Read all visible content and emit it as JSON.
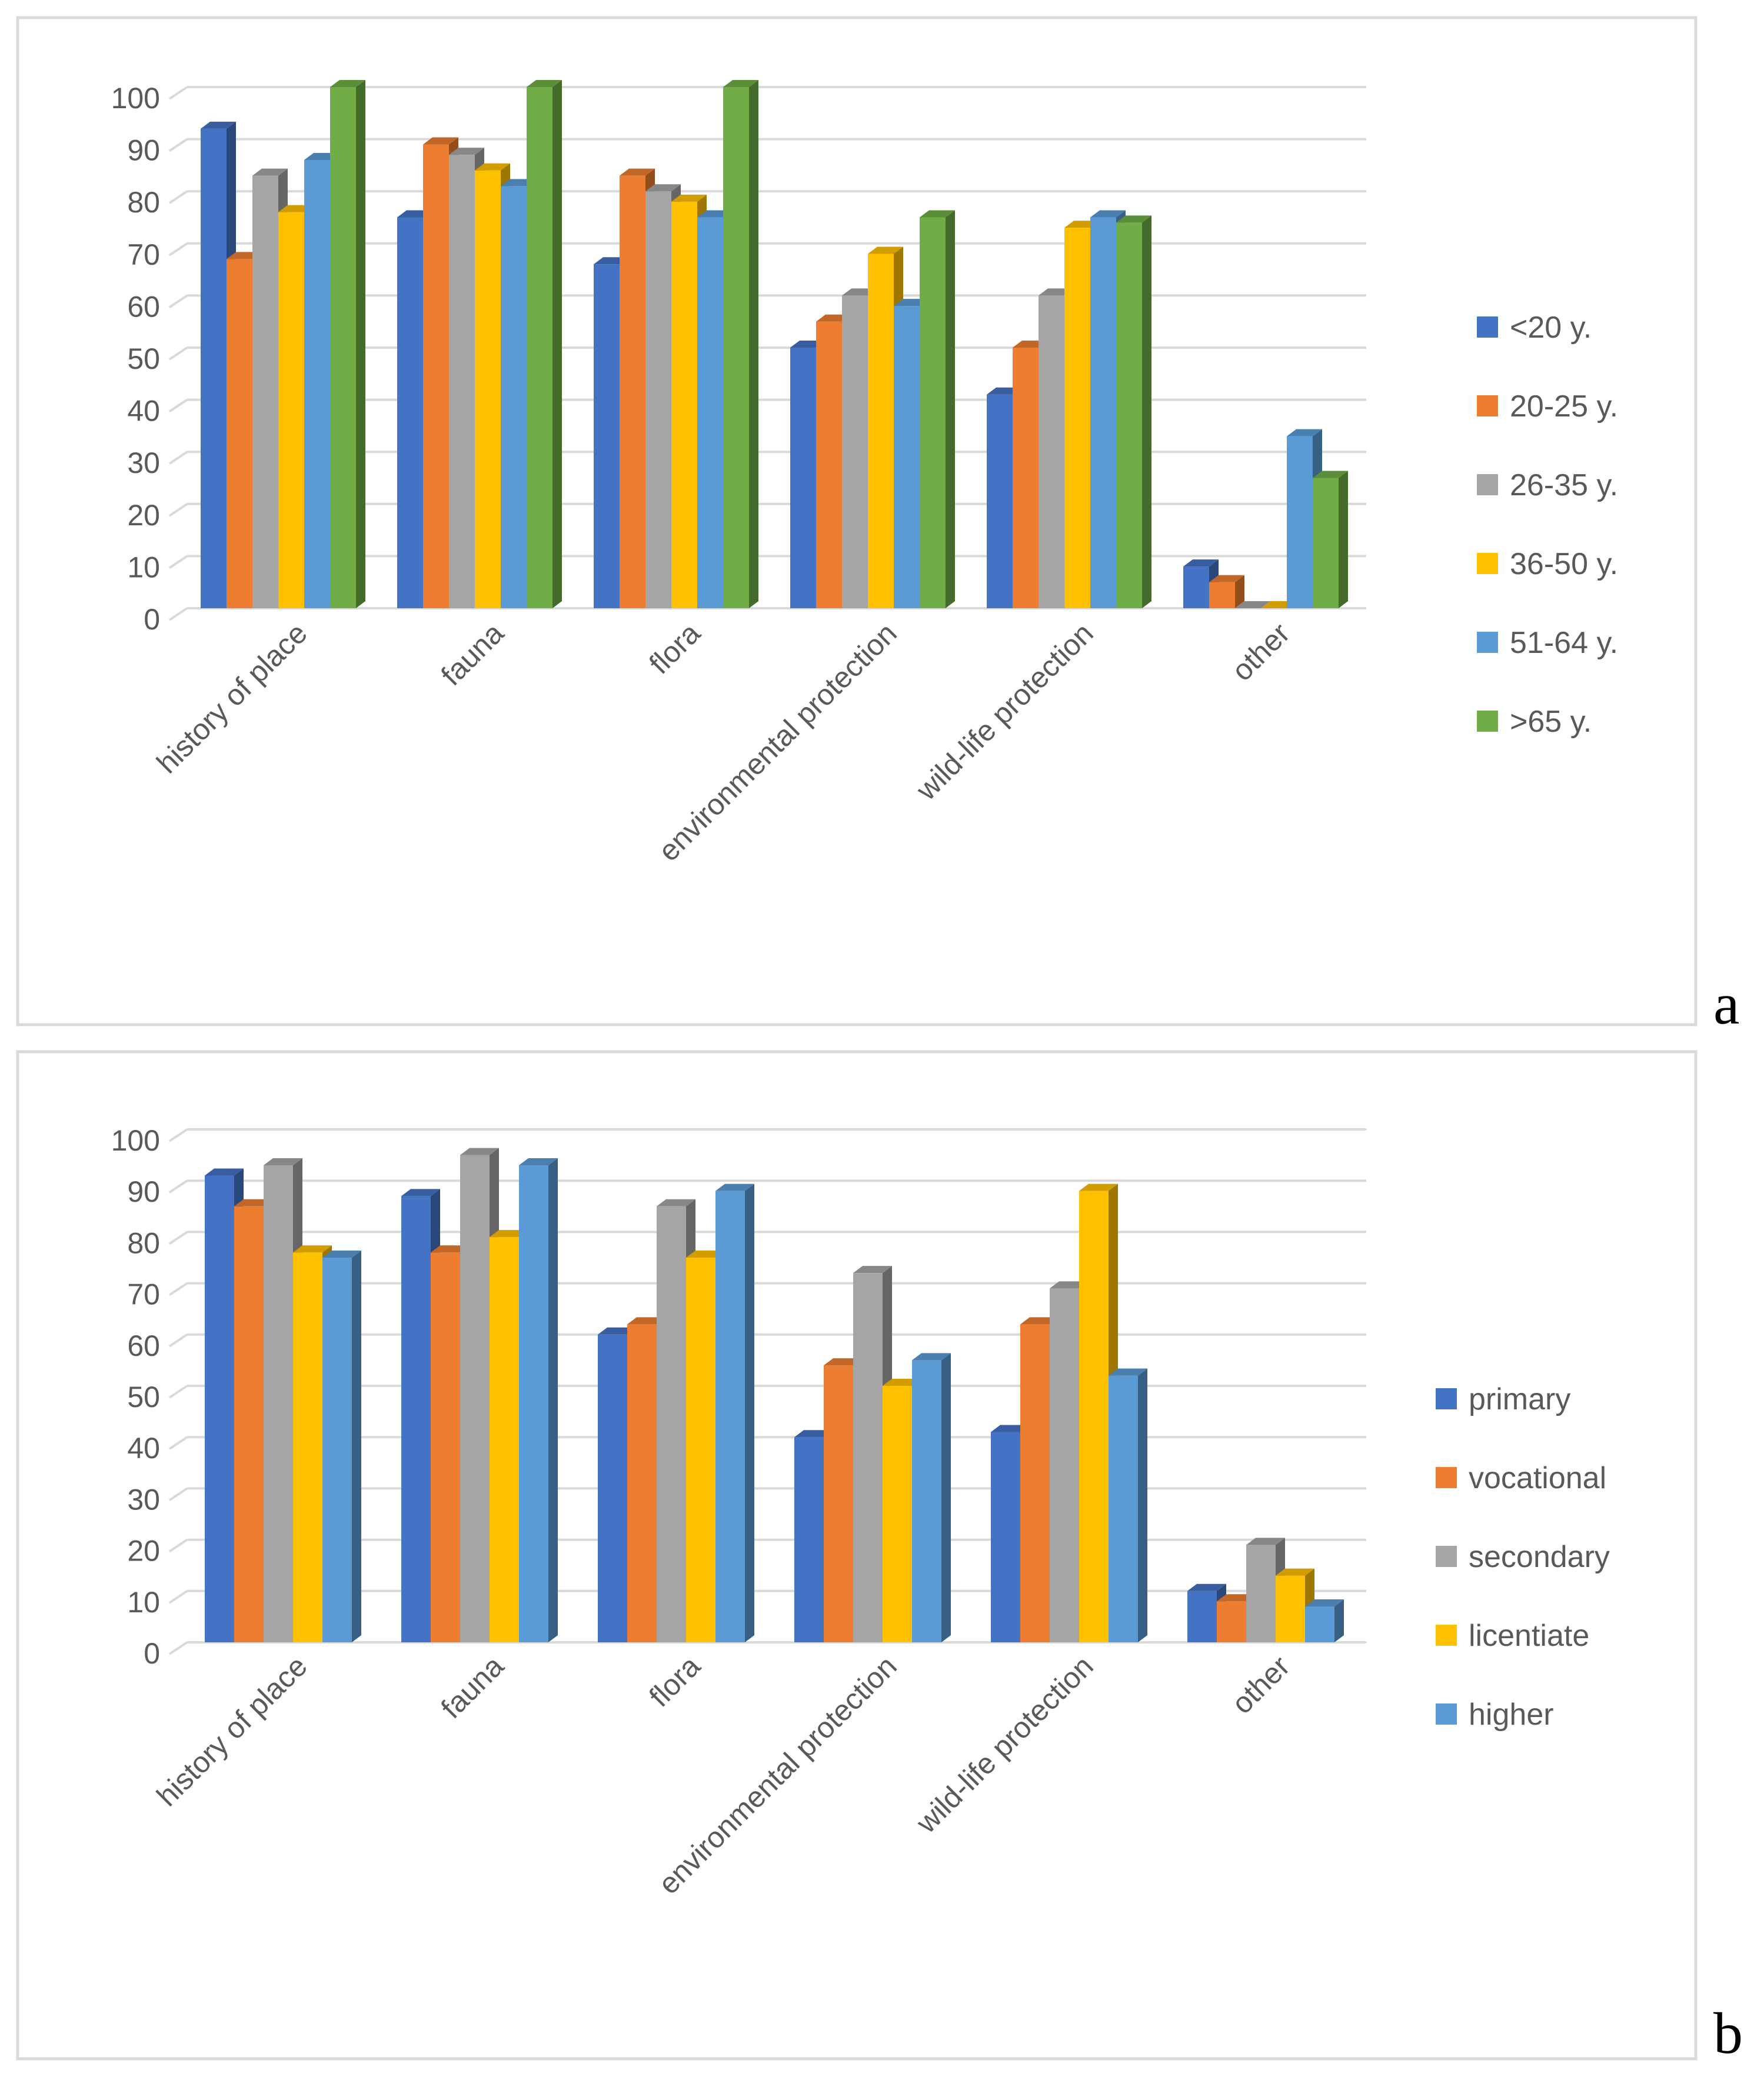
{
  "chart_data": [
    {
      "panel_label": "a",
      "type": "bar",
      "style": "3d-clustered-column",
      "categories": [
        "history of place",
        "fauna",
        "flora",
        "environmental protection",
        "wild-life protection",
        "other"
      ],
      "series": [
        {
          "name": "<20 y.",
          "color": "#4472C4",
          "values": [
            92,
            75,
            66,
            50,
            41,
            8
          ]
        },
        {
          "name": "20-25 y.",
          "color": "#ED7D31",
          "values": [
            67,
            89,
            83,
            55,
            50,
            5
          ]
        },
        {
          "name": "26-35 y.",
          "color": "#A5A5A5",
          "values": [
            83,
            87,
            80,
            60,
            60,
            0
          ]
        },
        {
          "name": "36-50 y.",
          "color": "#FFC000",
          "values": [
            76,
            84,
            78,
            68,
            73,
            0
          ]
        },
        {
          "name": "51-64 y.",
          "color": "#5B9BD5",
          "values": [
            86,
            81,
            75,
            58,
            75,
            33
          ]
        },
        {
          "name": ">65 y.",
          "color": "#70AD47",
          "values": [
            100,
            100,
            100,
            75,
            74,
            25
          ]
        }
      ],
      "ylim": [
        0,
        100
      ],
      "yticks": [
        "0",
        "10",
        "20",
        "30",
        "40",
        "50",
        "60",
        "70",
        "80",
        "90",
        "100"
      ],
      "grid": true,
      "legend": "right",
      "title": "",
      "xlabel": "",
      "ylabel": ""
    },
    {
      "panel_label": "b",
      "type": "bar",
      "style": "3d-clustered-column",
      "categories": [
        "history of place",
        "fauna",
        "flora",
        "environmental protection",
        "wild-life protection",
        "other"
      ],
      "series": [
        {
          "name": "primary",
          "color": "#4472C4",
          "values": [
            91,
            87,
            60,
            40,
            41,
            10
          ]
        },
        {
          "name": "vocational",
          "color": "#ED7D31",
          "values": [
            85,
            76,
            62,
            54,
            62,
            8
          ]
        },
        {
          "name": "secondary",
          "color": "#A5A5A5",
          "values": [
            93,
            95,
            85,
            72,
            69,
            19
          ]
        },
        {
          "name": "licentiate",
          "color": "#FFC000",
          "values": [
            76,
            79,
            75,
            50,
            88,
            13
          ]
        },
        {
          "name": "higher",
          "color": "#5B9BD5",
          "values": [
            75,
            93,
            88,
            55,
            52,
            7
          ]
        }
      ],
      "ylim": [
        0,
        100
      ],
      "yticks": [
        "0",
        "10",
        "20",
        "30",
        "40",
        "50",
        "60",
        "70",
        "80",
        "90",
        "100"
      ],
      "grid": true,
      "legend": "right",
      "title": "",
      "xlabel": "",
      "ylabel": ""
    }
  ]
}
